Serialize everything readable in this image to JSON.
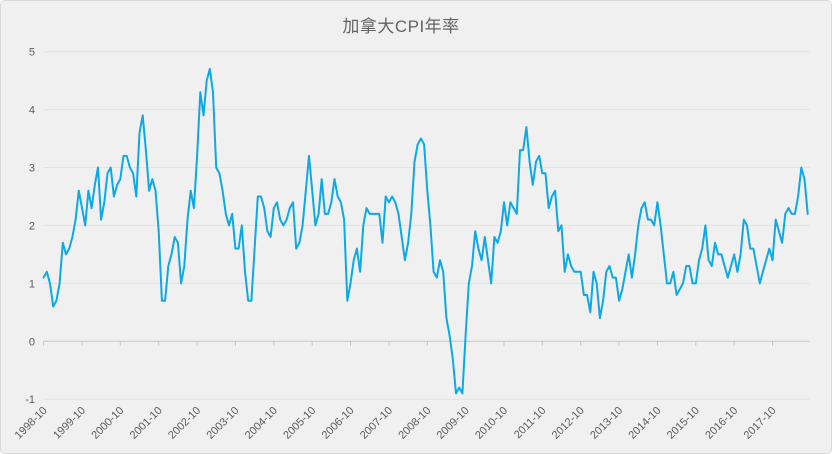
{
  "chart_data": {
    "type": "line",
    "title": "加拿大CPI年率",
    "x_start": "1998-10",
    "x_end": "2018-09",
    "x_frequency": "monthly",
    "x_tick_labels": [
      "1998-10",
      "1999-10",
      "2000-10",
      "2001-10",
      "2002-10",
      "2003-10",
      "2004-10",
      "2005-10",
      "2006-10",
      "2007-10",
      "2008-10",
      "2009-10",
      "2010-10",
      "2011-10",
      "2012-10",
      "2013-10",
      "2014-10",
      "2015-10",
      "2016-10",
      "2017-10"
    ],
    "x_tick_interval_months": 12,
    "ylim": [
      -1,
      5
    ],
    "y_ticks": [
      5,
      4,
      3,
      2,
      1,
      0,
      -1
    ],
    "grid": "horizontal-only",
    "legend": "none",
    "series": [
      {
        "name": "加拿大CPI年率",
        "values": [
          1.1,
          1.2,
          1.0,
          0.6,
          0.7,
          1.0,
          1.7,
          1.5,
          1.6,
          1.8,
          2.1,
          2.6,
          2.3,
          2.0,
          2.6,
          2.3,
          2.7,
          3.0,
          2.1,
          2.4,
          2.9,
          3.0,
          2.5,
          2.7,
          2.8,
          3.2,
          3.2,
          3.0,
          2.9,
          2.5,
          3.6,
          3.9,
          3.3,
          2.6,
          2.8,
          2.6,
          1.9,
          0.7,
          0.7,
          1.3,
          1.5,
          1.8,
          1.7,
          1.0,
          1.3,
          2.1,
          2.6,
          2.3,
          3.2,
          4.3,
          3.9,
          4.5,
          4.7,
          4.3,
          3.0,
          2.9,
          2.6,
          2.2,
          2.0,
          2.2,
          1.6,
          1.6,
          2.0,
          1.2,
          0.7,
          0.7,
          1.6,
          2.5,
          2.5,
          2.3,
          1.9,
          1.8,
          2.3,
          2.4,
          2.1,
          2.0,
          2.1,
          2.3,
          2.4,
          1.6,
          1.7,
          2.0,
          2.6,
          3.2,
          2.6,
          2.0,
          2.2,
          2.8,
          2.2,
          2.2,
          2.4,
          2.8,
          2.5,
          2.4,
          2.1,
          0.7,
          1.0,
          1.4,
          1.6,
          1.2,
          2.0,
          2.3,
          2.2,
          2.2,
          2.2,
          2.2,
          1.7,
          2.5,
          2.4,
          2.5,
          2.4,
          2.2,
          1.8,
          1.4,
          1.7,
          2.2,
          3.1,
          3.4,
          3.5,
          3.4,
          2.6,
          2.0,
          1.2,
          1.1,
          1.4,
          1.2,
          0.4,
          0.1,
          -0.3,
          -0.9,
          -0.8,
          -0.9,
          0.1,
          1.0,
          1.3,
          1.9,
          1.6,
          1.4,
          1.8,
          1.4,
          1.0,
          1.8,
          1.7,
          1.9,
          2.4,
          2.0,
          2.4,
          2.3,
          2.2,
          3.3,
          3.3,
          3.7,
          3.1,
          2.7,
          3.1,
          3.2,
          2.9,
          2.9,
          2.3,
          2.5,
          2.6,
          1.9,
          2.0,
          1.2,
          1.5,
          1.3,
          1.2,
          1.2,
          1.2,
          0.8,
          0.8,
          0.5,
          1.2,
          1.0,
          0.4,
          0.7,
          1.2,
          1.3,
          1.1,
          1.1,
          0.7,
          0.9,
          1.2,
          1.5,
          1.1,
          1.5,
          2.0,
          2.3,
          2.4,
          2.1,
          2.1,
          2.0,
          2.4,
          2.0,
          1.5,
          1.0,
          1.0,
          1.2,
          0.8,
          0.9,
          1.0,
          1.3,
          1.3,
          1.0,
          1.0,
          1.4,
          1.6,
          2.0,
          1.4,
          1.3,
          1.7,
          1.5,
          1.5,
          1.3,
          1.1,
          1.3,
          1.5,
          1.2,
          1.5,
          2.1,
          2.0,
          1.6,
          1.6,
          1.3,
          1.0,
          1.2,
          1.4,
          1.6,
          1.4,
          2.1,
          1.9,
          1.7,
          2.2,
          2.3,
          2.2,
          2.2,
          2.5,
          3.0,
          2.8,
          2.2
        ]
      }
    ]
  },
  "style": {
    "background": "#f0f0f0",
    "border_color": "#d8d8d8",
    "line_color": "#0ca9e8",
    "grid_color": "#e2e2e2",
    "zero_axis_color": "#c6c6c6",
    "label_color": "#5c5c5c",
    "title_color": "#646464"
  }
}
